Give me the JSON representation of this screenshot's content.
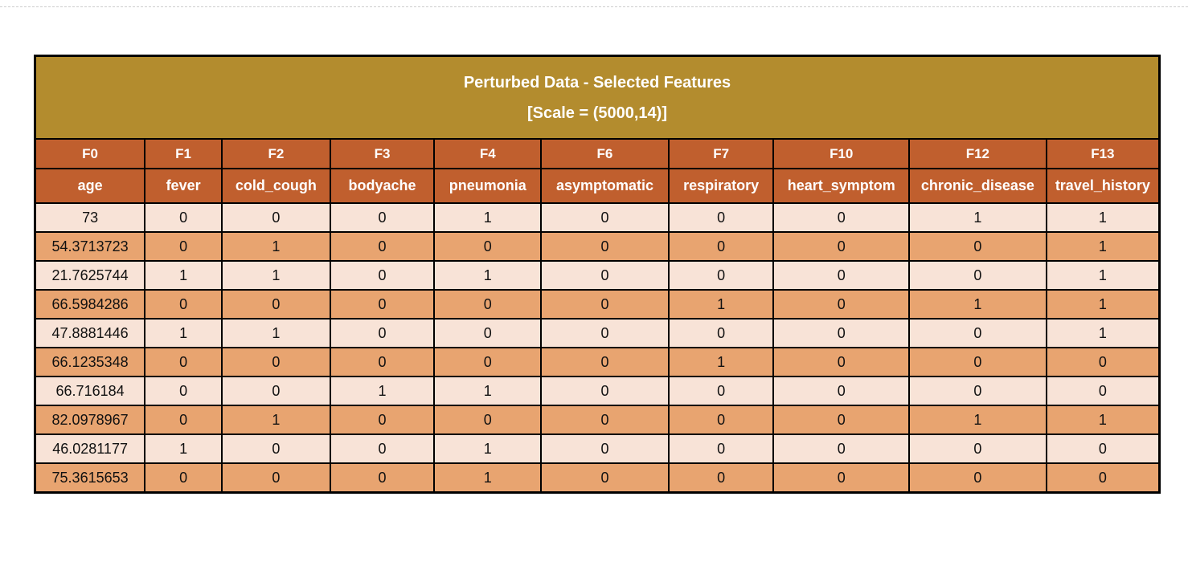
{
  "table": {
    "title_line1": "Perturbed Data - Selected Features",
    "title_line2": "[Scale = (5000,14)]",
    "feature_ids": [
      "F0",
      "F1",
      "F2",
      "F3",
      "F4",
      "F6",
      "F7",
      "F10",
      "F12",
      "F13"
    ],
    "feature_names": [
      "age",
      "fever",
      "cold_cough",
      "bodyache",
      "pneumonia",
      "asymptomatic",
      "respiratory",
      "heart_symptom",
      "chronic_disease",
      "travel_history"
    ],
    "rows": [
      [
        "73",
        "0",
        "0",
        "0",
        "1",
        "0",
        "0",
        "0",
        "1",
        "1"
      ],
      [
        "54.3713723",
        "0",
        "1",
        "0",
        "0",
        "0",
        "0",
        "0",
        "0",
        "1"
      ],
      [
        "21.7625744",
        "1",
        "1",
        "0",
        "1",
        "0",
        "0",
        "0",
        "0",
        "1"
      ],
      [
        "66.5984286",
        "0",
        "0",
        "0",
        "0",
        "0",
        "1",
        "0",
        "1",
        "1"
      ],
      [
        "47.8881446",
        "1",
        "1",
        "0",
        "0",
        "0",
        "0",
        "0",
        "0",
        "1"
      ],
      [
        "66.1235348",
        "0",
        "0",
        "0",
        "0",
        "0",
        "1",
        "0",
        "0",
        "0"
      ],
      [
        "66.716184",
        "0",
        "0",
        "1",
        "1",
        "0",
        "0",
        "0",
        "0",
        "0"
      ],
      [
        "82.0978967",
        "0",
        "1",
        "0",
        "0",
        "0",
        "0",
        "0",
        "1",
        "1"
      ],
      [
        "46.0281177",
        "1",
        "0",
        "0",
        "1",
        "0",
        "0",
        "0",
        "0",
        "0"
      ],
      [
        "75.3615653",
        "0",
        "0",
        "0",
        "1",
        "0",
        "0",
        "0",
        "0",
        "0"
      ]
    ],
    "colors": {
      "title_bg": "#B38C2E",
      "header_bg": "#C05F2E",
      "row_light": "#F8E3D7",
      "row_dark": "#E8A470",
      "border": "#000000",
      "header_text": "#FFFFFF",
      "data_text": "#111111"
    }
  }
}
